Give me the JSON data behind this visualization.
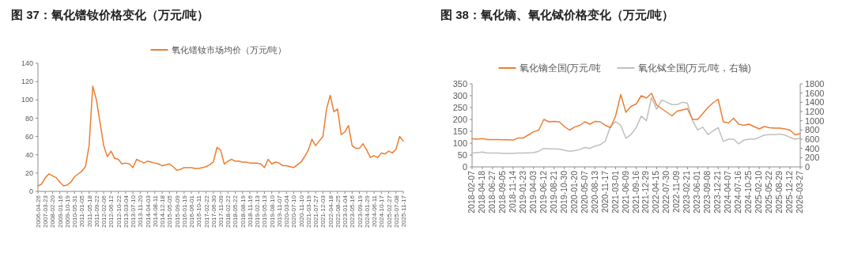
{
  "chart_data": [
    {
      "type": "line",
      "title": "图 37：氧化镨钕价格变化（万元/吨）",
      "legend": "top",
      "ylim": [
        0,
        140
      ],
      "yticks": [
        0,
        20,
        40,
        60,
        80,
        100,
        120,
        140
      ],
      "categories": [
        "2006-04-26",
        null,
        "2007-03-23",
        null,
        "2008-02-20",
        null,
        "2009-01-16",
        null,
        "2009-10-19",
        null,
        "2010-05-31",
        null,
        "2011-01-05",
        null,
        "2011-05-18",
        null,
        "2011-09-22",
        null,
        "2012-02-06",
        null,
        "2012-06-12",
        null,
        "2012-10-22",
        null,
        "2013-03-04",
        null,
        "2013-07-10",
        null,
        "2013-11-20",
        null,
        "2014-04-03",
        null,
        "2014-08-11",
        null,
        "2014-12-18",
        null,
        "2015-05-05",
        null,
        "2015-09-09",
        null,
        "2016-01-19",
        null,
        "2016-06-01",
        null,
        "2016-10-11",
        null,
        "2017-02-22",
        null,
        "2017-06-30",
        null,
        "2017-11-09",
        null,
        "2018-02-22",
        null,
        "2018-05-22",
        null,
        "2018-08-19",
        null,
        "2018-11-16",
        null,
        "2019-02-13",
        null,
        "2019-05-13",
        null,
        "2019-08-10",
        null,
        "2019-11-07",
        null,
        "2020-03-04",
        null,
        "2020-07-10",
        null,
        "2020-11-10",
        null,
        "2021-03-19",
        null,
        "2021-07-27",
        null,
        "2021-12-03",
        null,
        "2022-04-18",
        null,
        "2022-08-25",
        null,
        "2023-01-04",
        null,
        "2023-05-16",
        null,
        "2023-09-19",
        null,
        "2024-01-29",
        null,
        "2024-06-11",
        null,
        "2024-10-17",
        null,
        "2025-02-27",
        null,
        "2025-07-08",
        null,
        "2025-11-17"
      ],
      "series": [
        {
          "name": "氧化镨钕市场均价（万元/吨）",
          "color": "#ed7d31",
          "values": [
            6,
            8,
            15,
            19,
            17,
            15,
            10,
            6,
            7,
            10,
            16,
            19,
            22,
            27,
            50,
            115,
            100,
            75,
            50,
            38,
            44,
            36,
            35,
            30,
            31,
            30,
            26,
            35,
            33,
            31,
            33,
            32,
            31,
            30,
            28,
            29,
            30,
            27,
            23,
            24,
            26,
            26,
            26,
            25,
            25,
            26,
            27,
            29,
            32,
            48,
            45,
            30,
            33,
            35,
            33,
            33,
            32,
            32,
            31,
            31,
            31,
            30,
            26,
            35,
            30,
            32,
            31,
            28,
            28,
            27,
            26,
            29,
            32,
            38,
            45,
            57,
            50,
            55,
            60,
            90,
            105,
            87,
            90,
            62,
            65,
            72,
            50,
            47,
            47,
            52,
            45,
            37,
            39,
            37,
            42,
            41,
            44,
            42,
            46,
            60,
            55
          ]
        }
      ]
    },
    {
      "type": "line",
      "title": "图 38：氧化镝、氧化铽价格变化（万元/吨）",
      "legend": "top",
      "ylim": [
        0,
        350
      ],
      "yticks": [
        0,
        50,
        100,
        150,
        200,
        250,
        300,
        350
      ],
      "y2lim": [
        0,
        1800
      ],
      "y2ticks": [
        0,
        200,
        400,
        600,
        800,
        1000,
        1200,
        1400,
        1600,
        1800
      ],
      "categories": [
        "2018-02-07",
        null,
        "2018-04-18",
        null,
        "2018-06-27",
        null,
        "2018-09-05",
        null,
        "2018-11-14",
        null,
        "2019-01-23",
        null,
        "2019-04-03",
        null,
        "2019-06-12",
        null,
        "2019-08-21",
        null,
        "2019-10-30",
        null,
        "2020-01-20",
        null,
        "2020-05-07",
        null,
        "2020-08-13",
        null,
        "2020-11-17",
        null,
        "2021-03-01",
        null,
        "2021-06-09",
        null,
        "2021-09-16",
        null,
        "2021-12-29",
        null,
        "2022-04-15",
        null,
        "2022-07-30",
        null,
        "2022-11-09",
        null,
        "2023-02-21",
        null,
        "2023-06-01",
        null,
        "2023-09-08",
        null,
        "2023-12-21",
        null,
        "2024-04-07",
        null,
        "2024-07-16",
        null,
        "2024-10-25",
        null,
        "2025-02-10",
        null,
        "2025-05-22",
        null,
        "2025-08-29",
        null,
        "2025-12-12",
        null,
        "2026-03-27"
      ],
      "series": [
        {
          "name": "氧化镝全国(万元/吨",
          "color": "#ed7d31",
          "values": [
            118,
            117,
            119,
            115,
            115,
            115,
            114,
            114,
            113,
            122,
            122,
            135,
            148,
            155,
            200,
            190,
            192,
            190,
            170,
            155,
            168,
            175,
            190,
            180,
            192,
            190,
            175,
            165,
            215,
            305,
            230,
            255,
            265,
            300,
            290,
            310,
            260,
            245,
            230,
            215,
            235,
            240,
            245,
            200,
            200,
            225,
            250,
            270,
            285,
            190,
            185,
            205,
            180,
            175,
            180,
            170,
            160,
            170,
            165,
            163,
            163,
            160,
            155,
            135,
            140
          ]
        },
        {
          "name": "氧化铽全国(万元/吨，右轴)",
          "color": "#bfbfbf",
          "axis": "y2",
          "values": [
            300,
            310,
            320,
            300,
            300,
            300,
            290,
            290,
            290,
            300,
            300,
            305,
            310,
            340,
            400,
            390,
            390,
            385,
            360,
            340,
            350,
            375,
            420,
            400,
            450,
            480,
            560,
            880,
            980,
            900,
            620,
            700,
            850,
            1100,
            1000,
            1500,
            1250,
            1450,
            1400,
            1350,
            1350,
            1400,
            1380,
            1000,
            800,
            860,
            700,
            780,
            850,
            550,
            600,
            600,
            500,
            580,
            600,
            600,
            640,
            690,
            700,
            700,
            710,
            690,
            640,
            600,
            620
          ]
        }
      ]
    }
  ]
}
